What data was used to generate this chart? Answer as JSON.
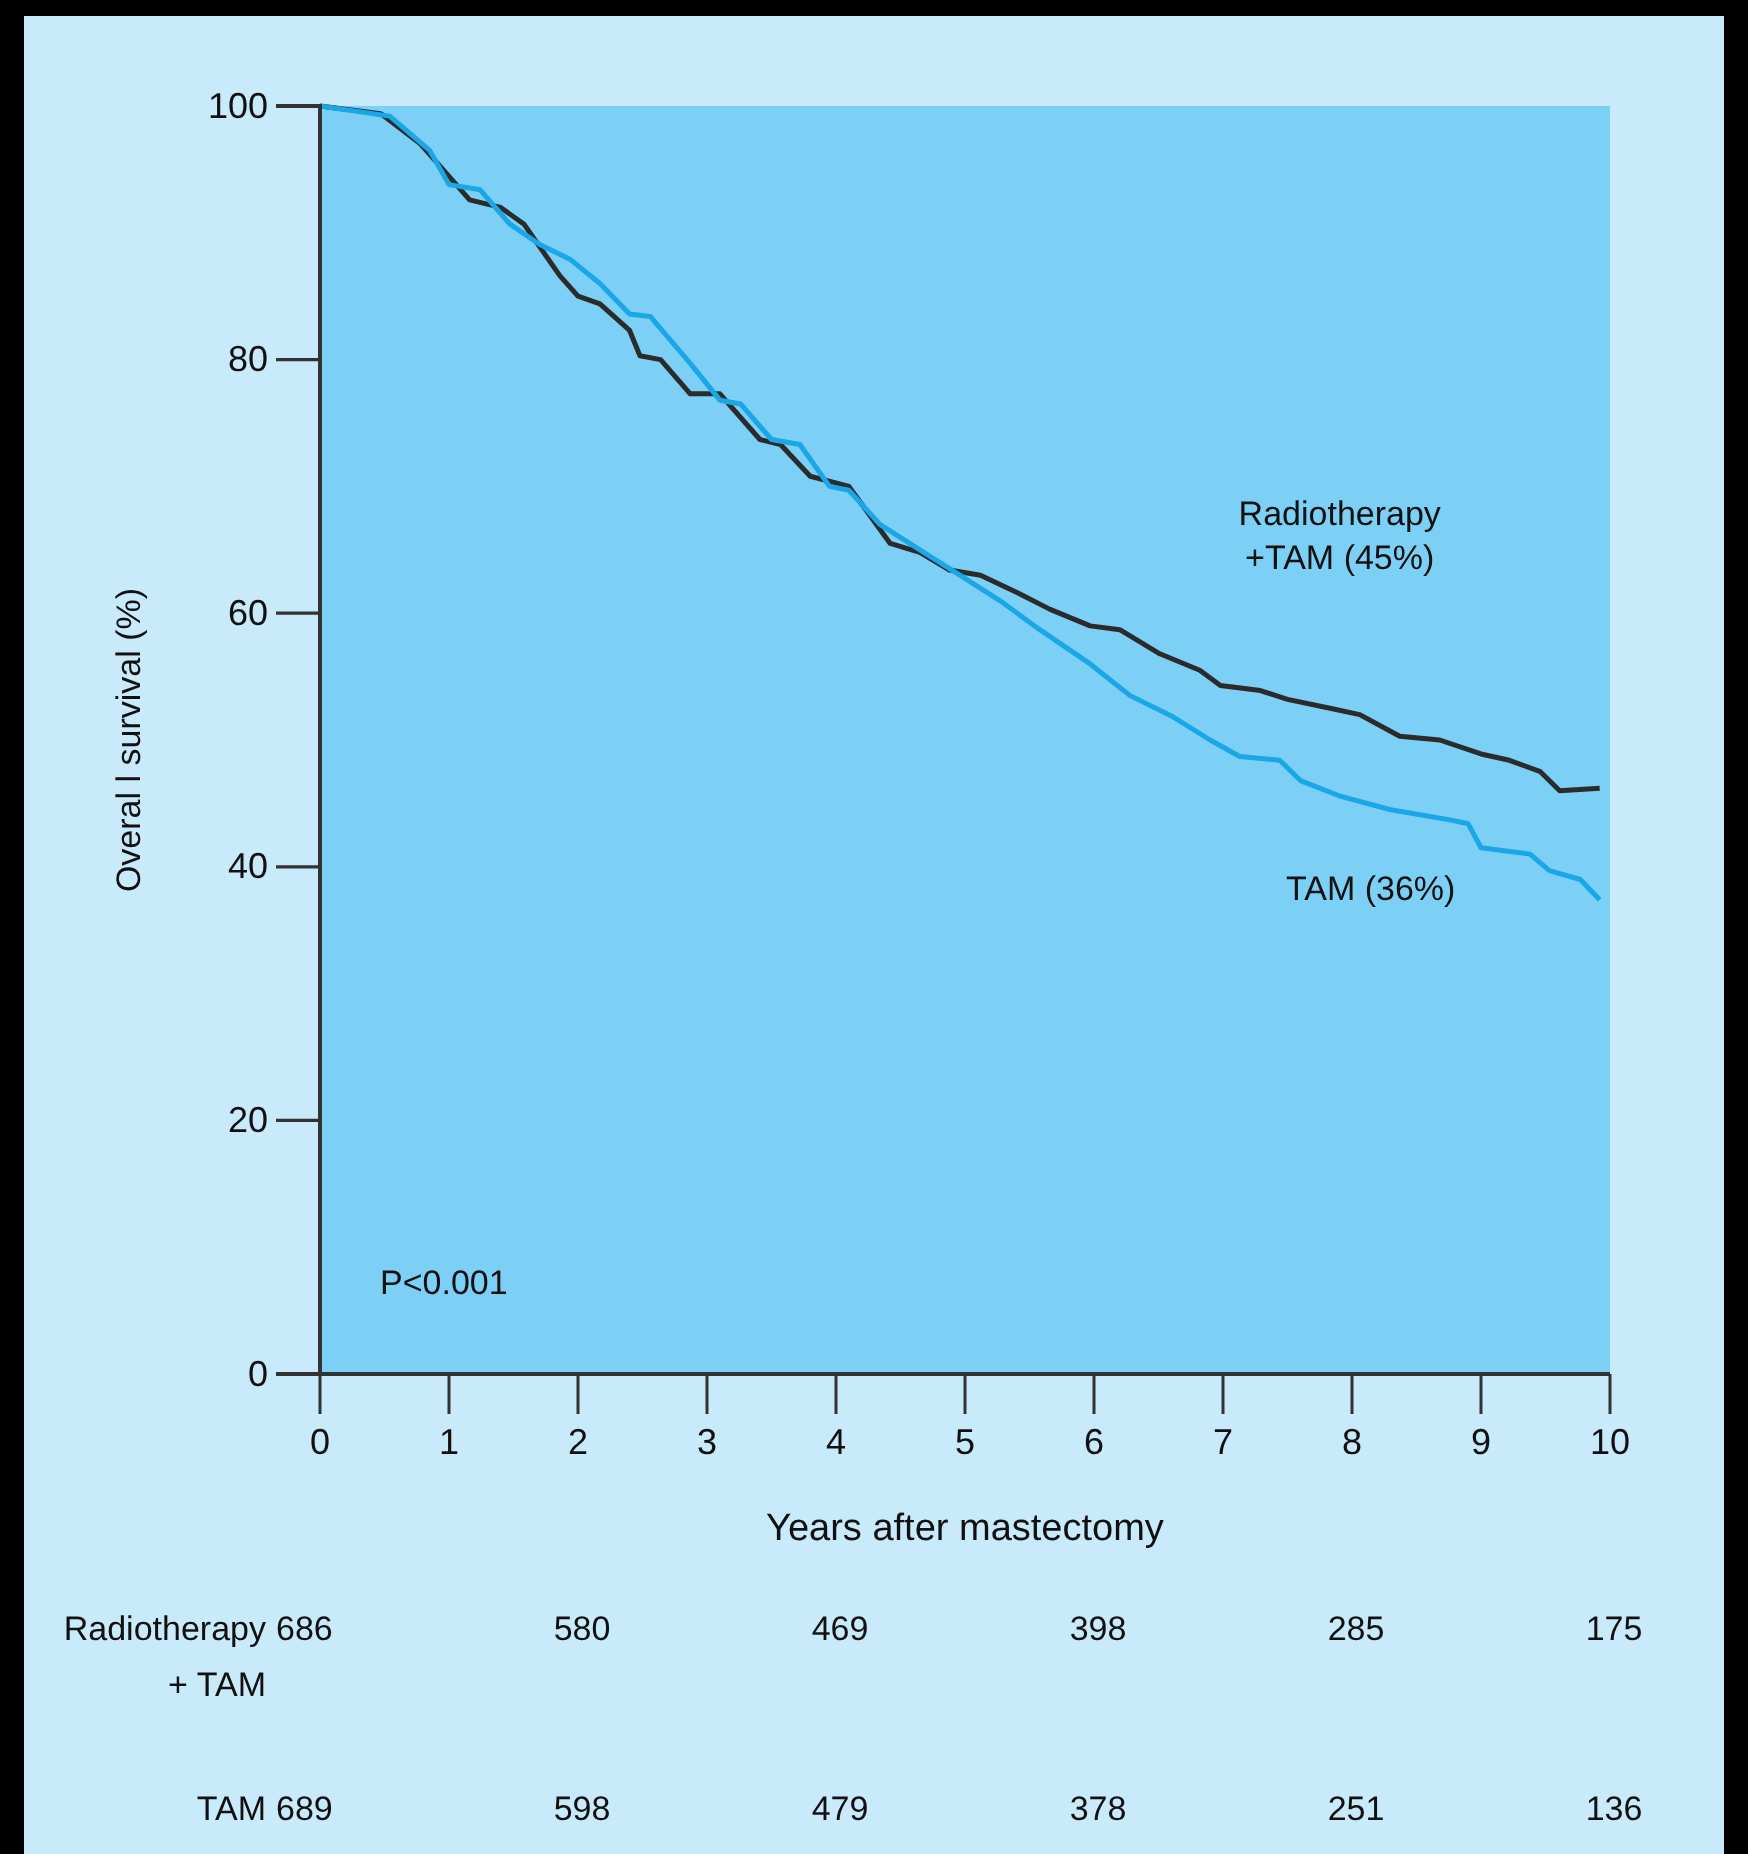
{
  "chart_data": {
    "type": "line",
    "xlabel": "Years after mastectomy",
    "ylabel": "Overal l survival (%)",
    "xlim": [
      0,
      10
    ],
    "ylim": [
      0,
      100
    ],
    "xticks": [
      0,
      1,
      2,
      3,
      4,
      5,
      6,
      7,
      8,
      9,
      10
    ],
    "yticks": [
      0,
      20,
      40,
      60,
      80,
      100
    ],
    "grid": false,
    "legend": false,
    "marker": "none",
    "line_style": "solid",
    "series": [
      {
        "name": "Radiotherapy +TAM (45%)",
        "color": "#2b2b2b",
        "x": [
          0,
          0.47,
          0.78,
          1.16,
          1.4,
          1.58,
          1.86,
          2.0,
          2.17,
          2.4,
          2.48,
          2.64,
          2.87,
          3.1,
          3.41,
          3.57,
          3.8,
          4.1,
          4.42,
          4.65,
          4.88,
          5.12,
          5.43,
          5.66,
          5.97,
          6.2,
          6.51,
          6.82,
          6.98,
          7.29,
          7.5,
          7.83,
          8.06,
          8.37,
          8.68,
          9.0,
          9.22,
          9.46,
          9.61,
          9.92
        ],
        "values": [
          100,
          99.4,
          97,
          92.6,
          92,
          90.7,
          86.6,
          85,
          84.4,
          82.3,
          80.3,
          80,
          77.3,
          77.3,
          73.7,
          73.3,
          70.8,
          70,
          65.5,
          64.8,
          63.4,
          63,
          61.5,
          60.3,
          59,
          58.7,
          56.8,
          55.5,
          54.3,
          53.9,
          53.2,
          52.5,
          52,
          50.3,
          50,
          48.9,
          48.4,
          47.5,
          46,
          46.2
        ]
      },
      {
        "name": "TAM (36%)",
        "color": "#1ba6e8",
        "x": [
          0,
          0.54,
          0.85,
          1.0,
          1.24,
          1.47,
          1.7,
          1.94,
          2.17,
          2.4,
          2.56,
          2.87,
          3.1,
          3.26,
          3.5,
          3.72,
          3.95,
          4.1,
          4.34,
          4.65,
          4.96,
          5.27,
          5.58,
          5.97,
          6.28,
          6.6,
          6.9,
          7.13,
          7.44,
          7.6,
          7.9,
          8.3,
          8.76,
          8.9,
          9.0,
          9.38,
          9.53,
          9.77,
          9.92
        ],
        "values": [
          100,
          99.2,
          96.5,
          93.8,
          93.4,
          90.7,
          89.1,
          87.9,
          86,
          83.6,
          83.4,
          79.7,
          76.8,
          76.5,
          73.7,
          73.3,
          70,
          69.7,
          67,
          65,
          63,
          61,
          58.7,
          56,
          53.5,
          51.9,
          50,
          48.7,
          48.4,
          46.8,
          45.6,
          44.5,
          43.7,
          43.4,
          41.5,
          41,
          39.7,
          39,
          37.4
        ]
      }
    ],
    "annotations": [
      "P<0.001",
      "Radiotherapy + TAM",
      "686",
      "580",
      "469",
      "398",
      "285",
      "175",
      "TAM",
      "689",
      "598",
      "479",
      "378",
      "251",
      "136"
    ]
  }
}
